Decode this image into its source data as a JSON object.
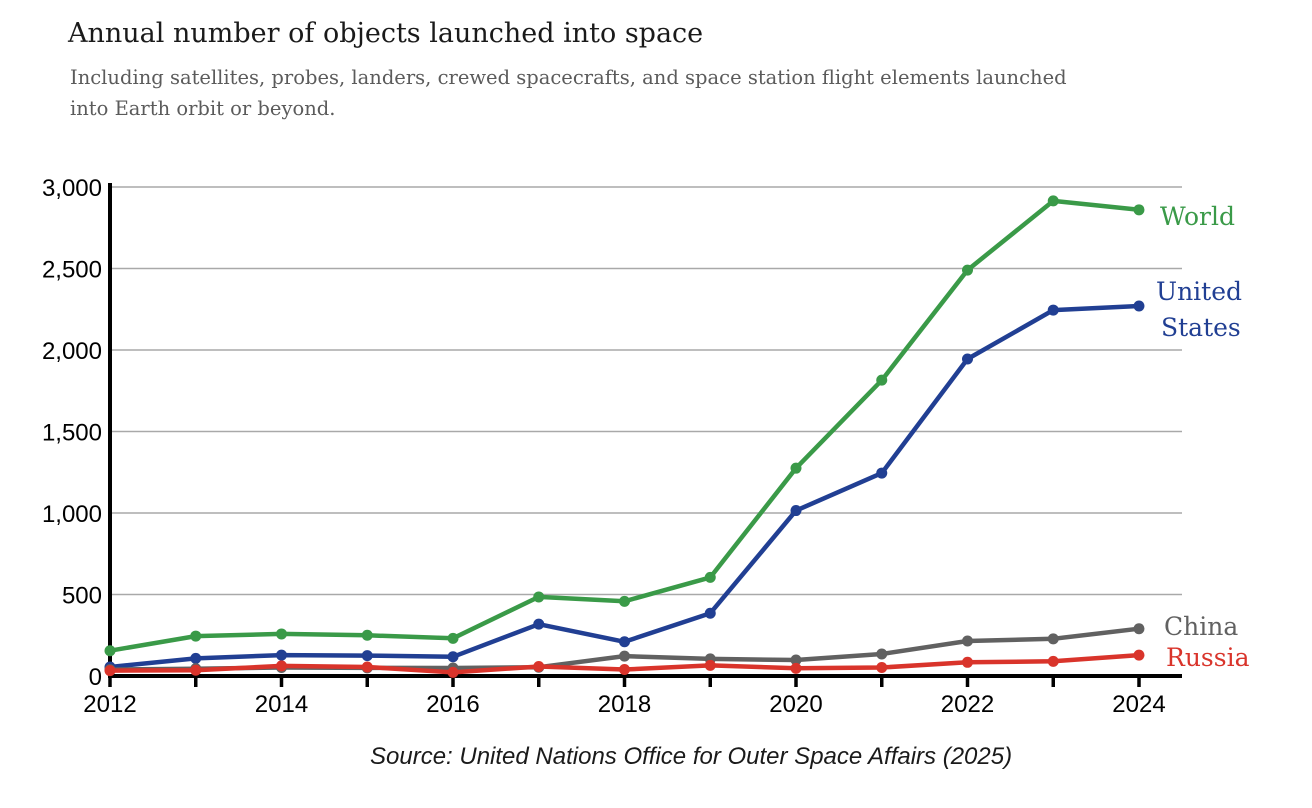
{
  "header": {
    "title": "Annual number of objects launched into space",
    "subtitle": "Including satellites, probes, landers, crewed spacecrafts, and space station flight elements launched into Earth orbit or beyond."
  },
  "footer": {
    "source": "Source: United Nations Office for Outer Space Affairs (2025)"
  },
  "chart_data": {
    "type": "line",
    "title": "Annual number of objects launched into space",
    "subtitle": "Including satellites, probes, landers, crewed spacecrafts, and space station flight elements launched into Earth orbit or beyond.",
    "xlabel": "",
    "ylabel": "",
    "x": [
      2012,
      2013,
      2014,
      2015,
      2016,
      2017,
      2018,
      2019,
      2020,
      2021,
      2022,
      2023,
      2024
    ],
    "xlim": [
      2012,
      2024
    ],
    "ylim": [
      0,
      3000
    ],
    "x_ticks": [
      2012,
      2014,
      2016,
      2018,
      2020,
      2022,
      2024
    ],
    "y_ticks": [
      0,
      500,
      1000,
      1500,
      2000,
      2500,
      3000
    ],
    "x_tick_labels": [
      "2012",
      "2014",
      "2016",
      "2018",
      "2020",
      "2022",
      "2024"
    ],
    "y_tick_labels": [
      "0",
      "500",
      "1,000",
      "1,500",
      "2,000",
      "2,500",
      "3,000"
    ],
    "grid": true,
    "legend": "inline labels at line ends",
    "series": [
      {
        "name": "World",
        "label_lines": [
          "World"
        ],
        "color": "#3a9a48",
        "values": [
          155,
          245,
          258,
          250,
          231,
          485,
          458,
          605,
          1275,
          1815,
          2490,
          2915,
          2860
        ]
      },
      {
        "name": "United States",
        "label_lines": [
          "United",
          "States"
        ],
        "color": "#213f93",
        "values": [
          55,
          108,
          128,
          125,
          118,
          318,
          210,
          385,
          1015,
          1245,
          1945,
          2245,
          2270
        ]
      },
      {
        "name": "China",
        "label_lines": [
          "China"
        ],
        "color": "#616161",
        "values": [
          39,
          45,
          52,
          50,
          49,
          54,
          122,
          105,
          98,
          135,
          215,
          228,
          290
        ]
      },
      {
        "name": "Russia",
        "label_lines": [
          "Russia"
        ],
        "color": "#d9342b",
        "values": [
          33,
          35,
          62,
          55,
          22,
          58,
          40,
          65,
          47,
          52,
          84,
          90,
          128
        ]
      }
    ]
  }
}
